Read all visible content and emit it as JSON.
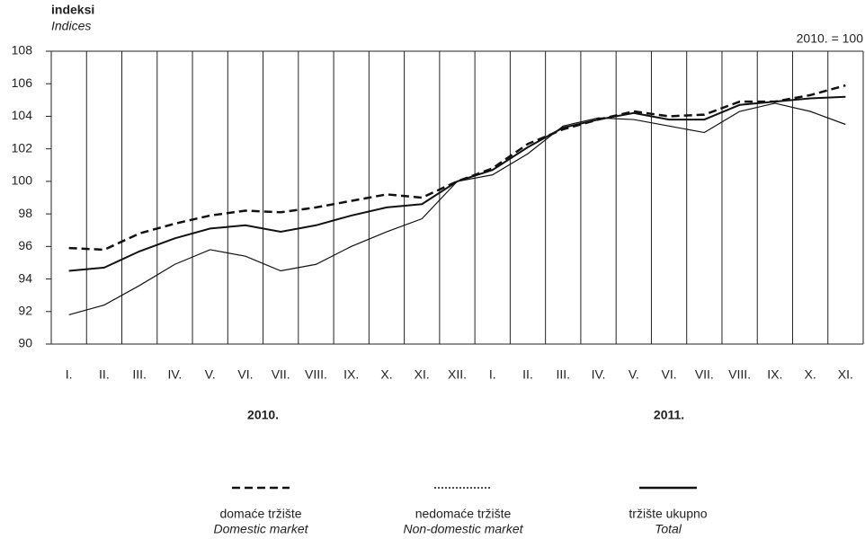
{
  "chart_data": {
    "type": "line",
    "ylabel": "indeksi",
    "ylabel_en": "Indices",
    "annotation": "2010. = 100",
    "categories": [
      "I.",
      "II.",
      "III.",
      "IV.",
      "V.",
      "VI.",
      "VII.",
      "VIII.",
      "IX.",
      "X.",
      "XI.",
      "XII.",
      "I.",
      "II.",
      "III.",
      "IV.",
      "V.",
      "VI.",
      "VII.",
      "VIII.",
      "IX.",
      "X.",
      "XI."
    ],
    "groups": [
      {
        "label": "2010.",
        "count": 12
      },
      {
        "label": "2011.",
        "count": 11
      }
    ],
    "ylim": [
      90,
      108
    ],
    "yticks": [
      90,
      92,
      94,
      96,
      98,
      100,
      102,
      104,
      106,
      108
    ],
    "series": [
      {
        "name": "domaće tržište",
        "name_en": "Domestic market",
        "color": "#111111",
        "line_style": "dashed",
        "line_width": 2.5,
        "values": [
          95.9,
          95.8,
          96.8,
          97.4,
          97.9,
          98.2,
          98.1,
          98.4,
          98.8,
          99.2,
          99.0,
          100.0,
          100.8,
          102.3,
          103.2,
          103.8,
          104.3,
          104.0,
          104.1,
          104.9,
          104.9,
          105.3,
          105.9
        ]
      },
      {
        "name": "nedomaće tržište",
        "name_en": "Non-domestic market",
        "color": "#111111",
        "line_style": "dotted",
        "line_width": 1.2,
        "values": [
          91.8,
          92.4,
          93.6,
          94.9,
          95.8,
          95.4,
          94.5,
          94.9,
          96.0,
          96.9,
          97.7,
          100.0,
          100.4,
          101.7,
          103.4,
          103.9,
          103.8,
          103.4,
          103.0,
          104.3,
          104.8,
          104.3,
          103.5
        ]
      },
      {
        "name": "tržište ukupno",
        "name_en": "Total",
        "color": "#111111",
        "line_style": "solid",
        "line_width": 2,
        "values": [
          94.5,
          94.7,
          95.7,
          96.5,
          97.1,
          97.3,
          96.9,
          97.3,
          97.9,
          98.4,
          98.6,
          100.0,
          100.7,
          102.1,
          103.3,
          103.8,
          104.2,
          103.8,
          103.8,
          104.7,
          104.9,
          105.1,
          105.2
        ]
      }
    ]
  }
}
